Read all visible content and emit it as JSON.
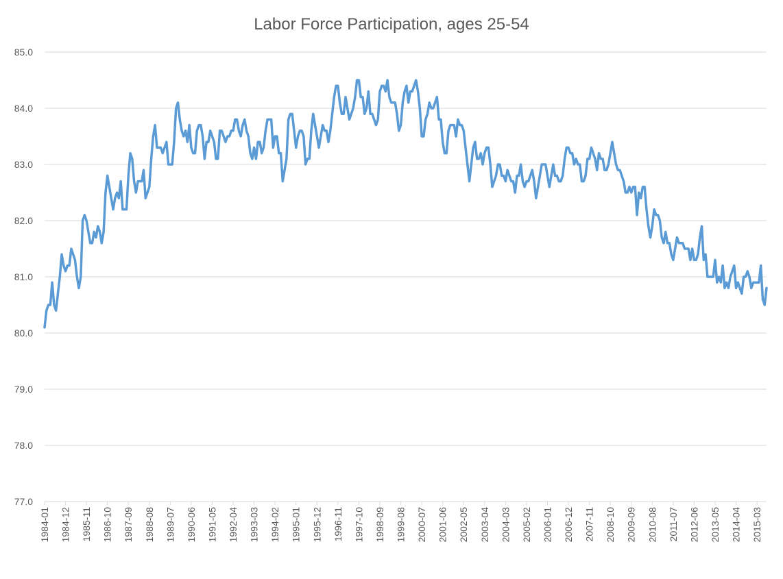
{
  "chart_data": {
    "type": "line",
    "title": "Labor Force Participation, ages 25-54",
    "categories": [
      "1984-01",
      null,
      null,
      null,
      null,
      null,
      null,
      null,
      null,
      null,
      null,
      "1984-12",
      null,
      null,
      null,
      null,
      null,
      null,
      null,
      null,
      null,
      null,
      "1985-11",
      null,
      null,
      null,
      null,
      null,
      null,
      null,
      null,
      null,
      null,
      "1986-10",
      null,
      null,
      null,
      null,
      null,
      null,
      null,
      null,
      null,
      null,
      "1987-09",
      null,
      null,
      null,
      null,
      null,
      null,
      null,
      null,
      null,
      null,
      "1988-08",
      null,
      null,
      null,
      null,
      null,
      null,
      null,
      null,
      null,
      null,
      "1989-07",
      null,
      null,
      null,
      null,
      null,
      null,
      null,
      null,
      null,
      null,
      "1990-06",
      null,
      null,
      null,
      null,
      null,
      null,
      null,
      null,
      null,
      null,
      "1991-05",
      null,
      null,
      null,
      null,
      null,
      null,
      null,
      null,
      null,
      null,
      "1992-04",
      null,
      null,
      null,
      null,
      null,
      null,
      null,
      null,
      null,
      null,
      "1993-03",
      null,
      null,
      null,
      null,
      null,
      null,
      null,
      null,
      null,
      null,
      "1994-02",
      null,
      null,
      null,
      null,
      null,
      null,
      null,
      null,
      null,
      null,
      "1995-01",
      null,
      null,
      null,
      null,
      null,
      null,
      null,
      null,
      null,
      null,
      "1995-12",
      null,
      null,
      null,
      null,
      null,
      null,
      null,
      null,
      null,
      null,
      "1996-11",
      null,
      null,
      null,
      null,
      null,
      null,
      null,
      null,
      null,
      null,
      "1997-10",
      null,
      null,
      null,
      null,
      null,
      null,
      null,
      null,
      null,
      null,
      "1998-09",
      null,
      null,
      null,
      null,
      null,
      null,
      null,
      null,
      null,
      null,
      "1999-08",
      null,
      null,
      null,
      null,
      null,
      null,
      null,
      null,
      null,
      null,
      "2000-07",
      null,
      null,
      null,
      null,
      null,
      null,
      null,
      null,
      null,
      null,
      "2001-06",
      null,
      null,
      null,
      null,
      null,
      null,
      null,
      null,
      null,
      null,
      "2002-05",
      null,
      null,
      null,
      null,
      null,
      null,
      null,
      null,
      null,
      null,
      "2003-04",
      null,
      null,
      null,
      null,
      null,
      null,
      null,
      null,
      null,
      null,
      "2004-03",
      null,
      null,
      null,
      null,
      null,
      null,
      null,
      null,
      null,
      null,
      "2005-02",
      null,
      null,
      null,
      null,
      null,
      null,
      null,
      null,
      null,
      null,
      "2006-01",
      null,
      null,
      null,
      null,
      null,
      null,
      null,
      null,
      null,
      null,
      "2006-12",
      null,
      null,
      null,
      null,
      null,
      null,
      null,
      null,
      null,
      null,
      "2007-11",
      null,
      null,
      null,
      null,
      null,
      null,
      null,
      null,
      null,
      null,
      "2008-10",
      null,
      null,
      null,
      null,
      null,
      null,
      null,
      null,
      null,
      null,
      "2009-09",
      null,
      null,
      null,
      null,
      null,
      null,
      null,
      null,
      null,
      null,
      "2010-08",
      null,
      null,
      null,
      null,
      null,
      null,
      null,
      null,
      null,
      null,
      "2011-07",
      null,
      null,
      null,
      null,
      null,
      null,
      null,
      null,
      null,
      null,
      "2012-06",
      null,
      null,
      null,
      null,
      null,
      null,
      null,
      null,
      null,
      null,
      "2013-05",
      null,
      null,
      null,
      null,
      null,
      null,
      null,
      null,
      null,
      null,
      "2014-04",
      null,
      null,
      null,
      null,
      null,
      null,
      null,
      null,
      null,
      null,
      "2015-03",
      null,
      null,
      null,
      null,
      null
    ],
    "values": [
      80.1,
      80.4,
      80.5,
      80.5,
      80.9,
      80.5,
      80.4,
      80.7,
      81.0,
      81.4,
      81.2,
      81.1,
      81.2,
      81.2,
      81.5,
      81.4,
      81.3,
      81.0,
      80.8,
      81.0,
      82.0,
      82.1,
      82.0,
      81.8,
      81.6,
      81.6,
      81.8,
      81.7,
      81.9,
      81.8,
      81.6,
      81.8,
      82.5,
      82.8,
      82.6,
      82.4,
      82.2,
      82.4,
      82.5,
      82.4,
      82.7,
      82.2,
      82.2,
      82.2,
      82.8,
      83.2,
      83.1,
      82.7,
      82.5,
      82.7,
      82.7,
      82.7,
      82.9,
      82.4,
      82.5,
      82.6,
      83.1,
      83.5,
      83.7,
      83.3,
      83.3,
      83.3,
      83.2,
      83.3,
      83.4,
      83.0,
      83.0,
      83.0,
      83.4,
      84.0,
      84.1,
      83.8,
      83.6,
      83.5,
      83.6,
      83.4,
      83.7,
      83.3,
      83.2,
      83.2,
      83.6,
      83.7,
      83.7,
      83.5,
      83.1,
      83.4,
      83.4,
      83.6,
      83.5,
      83.4,
      83.1,
      83.1,
      83.6,
      83.6,
      83.5,
      83.4,
      83.5,
      83.5,
      83.6,
      83.6,
      83.8,
      83.8,
      83.6,
      83.5,
      83.7,
      83.8,
      83.6,
      83.5,
      83.2,
      83.1,
      83.3,
      83.1,
      83.4,
      83.4,
      83.2,
      83.3,
      83.6,
      83.8,
      83.8,
      83.8,
      83.3,
      83.5,
      83.5,
      83.2,
      83.2,
      82.7,
      82.9,
      83.1,
      83.8,
      83.9,
      83.9,
      83.6,
      83.3,
      83.5,
      83.6,
      83.6,
      83.5,
      83.0,
      83.1,
      83.1,
      83.6,
      83.9,
      83.7,
      83.5,
      83.3,
      83.5,
      83.7,
      83.6,
      83.6,
      83.4,
      83.6,
      83.9,
      84.2,
      84.4,
      84.4,
      84.1,
      83.9,
      83.9,
      84.2,
      84.0,
      83.8,
      83.9,
      84.0,
      84.2,
      84.5,
      84.5,
      84.2,
      84.2,
      83.9,
      84.0,
      84.3,
      83.9,
      83.9,
      83.8,
      83.7,
      83.8,
      84.3,
      84.4,
      84.4,
      84.3,
      84.5,
      84.2,
      84.1,
      84.1,
      84.1,
      83.9,
      83.6,
      83.7,
      84.1,
      84.3,
      84.4,
      84.1,
      84.3,
      84.3,
      84.4,
      84.5,
      84.3,
      84.0,
      83.5,
      83.5,
      83.8,
      83.9,
      84.1,
      84.0,
      84.0,
      84.1,
      84.2,
      83.8,
      83.8,
      83.4,
      83.2,
      83.2,
      83.6,
      83.7,
      83.7,
      83.7,
      83.5,
      83.8,
      83.7,
      83.7,
      83.6,
      83.3,
      83.0,
      82.7,
      83.0,
      83.3,
      83.4,
      83.1,
      83.1,
      83.2,
      83.0,
      83.2,
      83.3,
      83.3,
      83.0,
      82.6,
      82.7,
      82.8,
      83.0,
      83.0,
      82.8,
      82.8,
      82.7,
      82.9,
      82.8,
      82.7,
      82.7,
      82.5,
      82.8,
      82.8,
      83.0,
      82.7,
      82.6,
      82.7,
      82.7,
      82.8,
      82.9,
      82.7,
      82.4,
      82.6,
      82.8,
      83.0,
      83.0,
      83.0,
      82.8,
      82.6,
      82.8,
      83.0,
      82.8,
      82.8,
      82.7,
      82.7,
      82.8,
      83.1,
      83.3,
      83.3,
      83.2,
      83.2,
      83.0,
      83.1,
      83.0,
      83.0,
      82.7,
      82.7,
      82.8,
      83.1,
      83.1,
      83.3,
      83.2,
      83.1,
      82.9,
      83.2,
      83.1,
      83.1,
      82.9,
      82.9,
      83.0,
      83.2,
      83.4,
      83.2,
      83.0,
      82.9,
      82.9,
      82.8,
      82.7,
      82.5,
      82.5,
      82.6,
      82.5,
      82.6,
      82.6,
      82.1,
      82.5,
      82.4,
      82.6,
      82.6,
      82.2,
      81.9,
      81.7,
      81.9,
      82.2,
      82.1,
      82.1,
      82.0,
      81.7,
      81.6,
      81.8,
      81.6,
      81.6,
      81.4,
      81.3,
      81.5,
      81.7,
      81.6,
      81.6,
      81.6,
      81.5,
      81.5,
      81.5,
      81.3,
      81.5,
      81.3,
      81.3,
      81.4,
      81.7,
      81.9,
      81.3,
      81.4,
      81.0,
      81.0,
      81.0,
      81.0,
      81.3,
      80.9,
      81.0,
      80.9,
      81.2,
      80.8,
      80.9,
      80.8,
      81.0,
      81.1,
      81.2,
      80.8,
      80.9,
      80.8,
      80.7,
      81.0,
      81.0,
      81.1,
      81.0,
      80.8,
      80.9,
      80.9,
      80.9,
      80.9,
      81.2,
      80.6,
      80.5,
      80.8
    ],
    "color": "#5b9bd5",
    "ylim": [
      77,
      85
    ],
    "yticks": [
      {
        "value": 77,
        "label": "77.0"
      },
      {
        "value": 78,
        "label": "78.0"
      },
      {
        "value": 79,
        "label": "79.0"
      },
      {
        "value": 80,
        "label": "80.0"
      },
      {
        "value": 81,
        "label": "81.0"
      },
      {
        "value": 82,
        "label": "82.0"
      },
      {
        "value": 83,
        "label": "83.0"
      },
      {
        "value": 84,
        "label": "84.0"
      },
      {
        "value": 85,
        "label": "85.0"
      }
    ],
    "grid": true
  }
}
